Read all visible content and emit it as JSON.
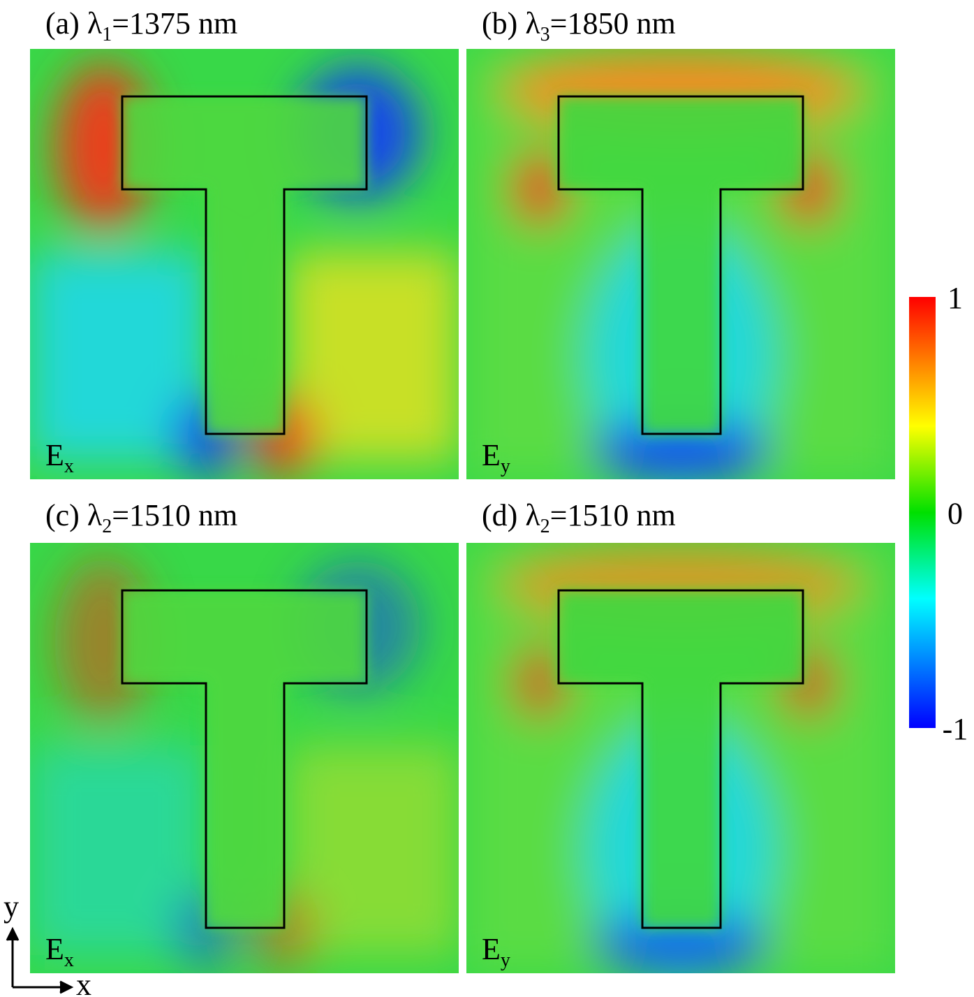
{
  "panels": [
    {
      "label": "(a)",
      "symbol": "λ",
      "symbol_sub": "1",
      "wavelength": "=1375 nm",
      "field": "E",
      "field_sub": "x"
    },
    {
      "label": "(b)",
      "symbol": "λ",
      "symbol_sub": "3",
      "wavelength": "=1850 nm",
      "field": "E",
      "field_sub": "y"
    },
    {
      "label": "(c)",
      "symbol": "λ",
      "symbol_sub": "2",
      "wavelength": "=1510 nm",
      "field": "E",
      "field_sub": "x"
    },
    {
      "label": "(d)",
      "symbol": "λ",
      "symbol_sub": "2",
      "wavelength": "=1510 nm",
      "field": "E",
      "field_sub": "y"
    }
  ],
  "colorbar": {
    "ticks": [
      1,
      0,
      -1
    ]
  },
  "axes": {
    "y": "y",
    "x": "x"
  }
}
